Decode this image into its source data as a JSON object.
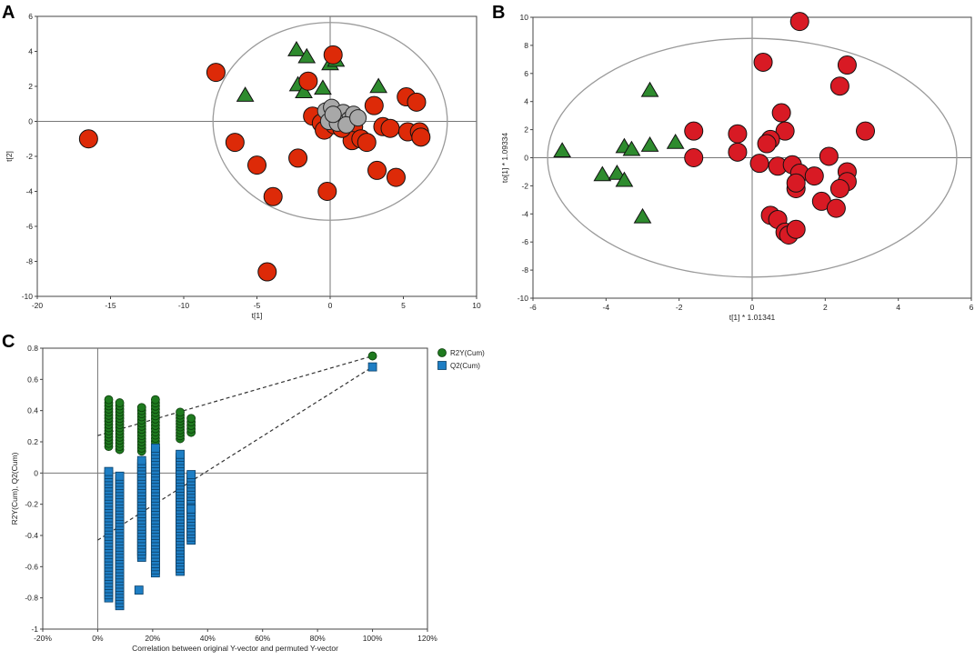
{
  "chart_data": [
    {
      "panel": "A",
      "type": "scatter",
      "xlabel": "t[1]",
      "ylabel": "t[2]",
      "xlim": [
        -20,
        10
      ],
      "ylim": [
        -10,
        6
      ],
      "xticks": [
        -20,
        -15,
        -10,
        -5,
        0,
        5,
        10
      ],
      "yticks": [
        -10,
        -8,
        -6,
        -4,
        -2,
        0,
        2,
        4,
        6
      ],
      "ellipse": {
        "cx": 0,
        "cy": 0,
        "rx": 8,
        "ry": 5.65
      },
      "colors": {
        "triangles": "#2e8b2e",
        "circles": "#dd2a08",
        "gray": "#a8a8a8"
      },
      "triangles": [
        [
          -2.3,
          4.1
        ],
        [
          -1.6,
          3.7
        ],
        [
          0,
          3.3
        ],
        [
          0.4,
          3.5
        ],
        [
          -5.8,
          1.5
        ],
        [
          -2.2,
          2.1
        ],
        [
          -1.8,
          1.7
        ],
        [
          -0.5,
          1.9
        ],
        [
          3.3,
          2.0
        ]
      ],
      "circles": [
        [
          -7.8,
          2.8
        ],
        [
          0.2,
          3.8
        ],
        [
          -1.5,
          2.3
        ],
        [
          -16.5,
          -1
        ],
        [
          -6.5,
          -1.2
        ],
        [
          -5,
          -2.5
        ],
        [
          -2.2,
          -2.1
        ],
        [
          -3.9,
          -4.3
        ],
        [
          -0.2,
          -4
        ],
        [
          -4.3,
          -8.6
        ],
        [
          -1.2,
          0.3
        ],
        [
          -0.6,
          -0.1
        ],
        [
          -0.4,
          -0.5
        ],
        [
          0.3,
          -0.2
        ],
        [
          1,
          0.2
        ],
        [
          1.6,
          -0.3
        ],
        [
          1.5,
          -1.1
        ],
        [
          2.1,
          -1
        ],
        [
          2.5,
          -1.2
        ],
        [
          3,
          0.9
        ],
        [
          3.2,
          -2.8
        ],
        [
          3.6,
          -0.3
        ],
        [
          4.1,
          -0.4
        ],
        [
          4.5,
          -3.2
        ],
        [
          5.3,
          -0.6
        ],
        [
          5.2,
          1.4
        ],
        [
          5.9,
          1.1
        ],
        [
          6.1,
          -0.6
        ],
        [
          6.2,
          -0.9
        ],
        [
          0.8,
          -0.4
        ]
      ],
      "grays": [
        [
          -0.3,
          0.6
        ],
        [
          0.1,
          0.8
        ],
        [
          0.6,
          0.2
        ],
        [
          0.9,
          0.5
        ],
        [
          1.3,
          0.1
        ],
        [
          1.6,
          0.4
        ],
        [
          -0.1,
          0
        ],
        [
          0.5,
          -0.1
        ],
        [
          1.1,
          -0.2
        ],
        [
          0.2,
          0.4
        ],
        [
          1.9,
          0.2
        ]
      ]
    },
    {
      "panel": "B",
      "type": "scatter",
      "xlabel": "t[1] * 1.01341",
      "ylabel": "to[1] * 1.09334",
      "xlim": [
        -6,
        6
      ],
      "ylim": [
        -10,
        10
      ],
      "xticks": [
        -6,
        -4,
        -2,
        0,
        2,
        4,
        6
      ],
      "yticks": [
        -10,
        -8,
        -6,
        -4,
        -2,
        0,
        2,
        4,
        6,
        8,
        10
      ],
      "ellipse": {
        "cx": 0,
        "cy": 0,
        "rx": 5.6,
        "ry": 8.5
      },
      "colors": {
        "triangles": "#2e8b2e",
        "circles": "#d81a24"
      },
      "triangles": [
        [
          -2.8,
          4.8
        ],
        [
          -5.2,
          0.5
        ],
        [
          -3.5,
          0.8
        ],
        [
          -3.3,
          0.6
        ],
        [
          -2.8,
          0.9
        ],
        [
          -2.1,
          1.1
        ],
        [
          -4.1,
          -1.2
        ],
        [
          -3.7,
          -1.1
        ],
        [
          -3.5,
          -1.6
        ],
        [
          -3.0,
          -4.2
        ]
      ],
      "circles": [
        [
          1.3,
          9.7
        ],
        [
          0.3,
          6.8
        ],
        [
          2.6,
          6.6
        ],
        [
          2.4,
          5.1
        ],
        [
          0.8,
          3.2
        ],
        [
          3.1,
          1.9
        ],
        [
          -1.6,
          1.9
        ],
        [
          -0.4,
          1.7
        ],
        [
          0.9,
          1.9
        ],
        [
          0.5,
          1.3
        ],
        [
          0.4,
          1.0
        ],
        [
          -1.6,
          0.0
        ],
        [
          -0.4,
          0.4
        ],
        [
          0.2,
          -0.4
        ],
        [
          0.7,
          -0.6
        ],
        [
          1.1,
          -0.5
        ],
        [
          1.3,
          -1.1
        ],
        [
          1.7,
          -1.3
        ],
        [
          1.2,
          -2.2
        ],
        [
          1.2,
          -1.8
        ],
        [
          2.1,
          0.1
        ],
        [
          2.6,
          -1.0
        ],
        [
          2.6,
          -1.7
        ],
        [
          2.4,
          -2.2
        ],
        [
          1.9,
          -3.1
        ],
        [
          2.3,
          -3.6
        ],
        [
          0.5,
          -4.1
        ],
        [
          0.7,
          -4.4
        ],
        [
          0.9,
          -5.3
        ],
        [
          1.0,
          -5.5
        ],
        [
          1.2,
          -5.1
        ]
      ]
    },
    {
      "panel": "C",
      "type": "scatter",
      "xlabel": "Correlation between original Y-vector and permuted Y-vector",
      "ylabel": "R2Y(Cum), Q2(Cum)",
      "xlim": [
        -20,
        120
      ],
      "ylim": [
        -1,
        0.8
      ],
      "xticks": [
        -20,
        0,
        20,
        40,
        60,
        80,
        100,
        120
      ],
      "xtick_labels": [
        "-20%",
        "0%",
        "20%",
        "40%",
        "60%",
        "80%",
        "100%",
        "120%"
      ],
      "yticks": [
        -1,
        -0.8,
        -0.6,
        -0.4,
        -0.2,
        0,
        0.2,
        0.4,
        0.6,
        0.8
      ],
      "series": [
        {
          "name": "R2Y(Cum)",
          "color": "#1f7a1f",
          "marker": "circle",
          "columns": [
            {
              "x": 4,
              "min": 0.17,
              "max": 0.47
            },
            {
              "x": 8,
              "min": 0.15,
              "max": 0.45
            },
            {
              "x": 16,
              "min": 0.14,
              "max": 0.42
            },
            {
              "x": 21,
              "min": 0.14,
              "max": 0.47
            },
            {
              "x": 30,
              "min": 0.22,
              "max": 0.39
            },
            {
              "x": 34,
              "min": 0.26,
              "max": 0.35
            }
          ],
          "original": {
            "x": 100,
            "y": 0.75
          }
        },
        {
          "name": "Q2(Cum)",
          "color": "#1e7ec4",
          "marker": "square",
          "columns": [
            {
              "x": 4,
              "min": -0.8,
              "max": 0.01
            },
            {
              "x": 8,
              "min": -0.85,
              "max": -0.02
            },
            {
              "x": 16,
              "min": -0.54,
              "max": 0.08
            },
            {
              "x": 21,
              "min": -0.64,
              "max": 0.16
            },
            {
              "x": 30,
              "min": -0.63,
              "max": 0.12
            },
            {
              "x": 34,
              "min": -0.43,
              "max": -0.01
            }
          ],
          "extra_points": [
            [
              15,
              -0.75
            ],
            [
              34,
              -0.23
            ]
          ],
          "original": {
            "x": 100,
            "y": 0.68
          }
        }
      ],
      "fit_lines": [
        {
          "series": "R2Y(Cum)",
          "from": [
            0,
            0.24
          ],
          "to": [
            100,
            0.75
          ]
        },
        {
          "series": "Q2(Cum)",
          "from": [
            0,
            -0.43
          ],
          "to": [
            100,
            0.68
          ]
        }
      ]
    }
  ]
}
